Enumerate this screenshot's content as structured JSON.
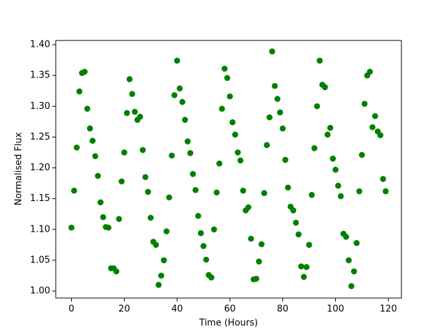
{
  "chart_data": {
    "type": "scatter",
    "xlabel": "Time (Hours)",
    "ylabel": "Normalised Flux",
    "color": "#008000",
    "x": [
      0,
      1,
      2,
      3,
      4,
      5,
      6,
      7,
      8,
      9,
      10,
      11,
      12,
      13,
      14,
      15,
      16,
      17,
      18,
      19,
      20,
      21,
      22,
      23,
      24,
      25,
      26,
      27,
      28,
      29,
      30,
      31,
      32,
      33,
      34,
      35,
      36,
      37,
      38,
      39,
      40,
      41,
      42,
      43,
      44,
      45,
      46,
      47,
      48,
      49,
      50,
      51,
      52,
      53,
      54,
      55,
      56,
      57,
      58,
      59,
      60,
      61,
      62,
      63,
      64,
      65,
      66,
      67,
      68,
      69,
      70,
      71,
      72,
      73,
      74,
      75,
      76,
      77,
      78,
      79,
      80,
      81,
      82,
      83,
      84,
      85,
      86,
      87,
      88,
      89,
      90,
      91,
      92,
      93,
      94,
      95,
      96,
      97,
      98,
      99,
      100,
      101,
      102,
      103,
      104,
      105,
      106,
      107,
      108,
      109,
      110,
      111,
      112,
      113,
      114,
      115,
      116,
      117,
      118,
      119
    ],
    "values": [
      1.103,
      1.163,
      1.233,
      1.324,
      1.354,
      1.356,
      1.296,
      1.264,
      1.244,
      1.219,
      1.187,
      1.144,
      1.12,
      1.104,
      1.103,
      1.037,
      1.037,
      1.032,
      1.117,
      1.178,
      1.225,
      1.289,
      1.344,
      1.32,
      1.291,
      1.278,
      1.283,
      1.229,
      1.185,
      1.161,
      1.119,
      1.08,
      1.075,
      1.01,
      1.025,
      1.05,
      1.097,
      1.152,
      1.22,
      1.318,
      1.374,
      1.329,
      1.307,
      1.278,
      1.243,
      1.224,
      1.19,
      1.164,
      1.122,
      1.094,
      1.073,
      1.051,
      1.026,
      1.022,
      1.1,
      1.16,
      1.207,
      1.296,
      1.361,
      1.346,
      1.316,
      1.274,
      1.254,
      1.225,
      1.212,
      1.163,
      1.131,
      1.136,
      1.085,
      1.019,
      1.02,
      1.048,
      1.076,
      1.159,
      1.237,
      1.282,
      1.389,
      1.333,
      1.312,
      1.29,
      1.264,
      1.213,
      1.168,
      1.137,
      1.131,
      1.111,
      1.092,
      1.04,
      1.023,
      1.039,
      1.075,
      1.156,
      1.232,
      1.3,
      1.374,
      1.335,
      1.331,
      1.254,
      1.265,
      1.215,
      1.197,
      1.171,
      1.154,
      1.093,
      1.088,
      1.05,
      1.008,
      1.032,
      1.078,
      1.162,
      1.221,
      1.304,
      1.35,
      1.356,
      1.266,
      1.284,
      1.259,
      1.253,
      1.182,
      1.162
    ],
    "xlim": [
      -5.95,
      124.95
    ],
    "xticks": [
      0,
      20,
      40,
      60,
      80,
      100,
      120
    ],
    "ylim": [
      0.9887,
      1.4068
    ],
    "yticks": [
      {
        "value": 1,
        "label": "1.00"
      },
      {
        "value": 1.05,
        "label": "1.05"
      },
      {
        "value": 1.1,
        "label": "1.10"
      },
      {
        "value": 1.15,
        "label": "1.15"
      },
      {
        "value": 1.2,
        "label": "1.20"
      },
      {
        "value": 1.25,
        "label": "1.25"
      },
      {
        "value": 1.3,
        "label": "1.30"
      },
      {
        "value": 1.35,
        "label": "1.35"
      },
      {
        "value": 1.4,
        "label": "1.40"
      }
    ]
  }
}
